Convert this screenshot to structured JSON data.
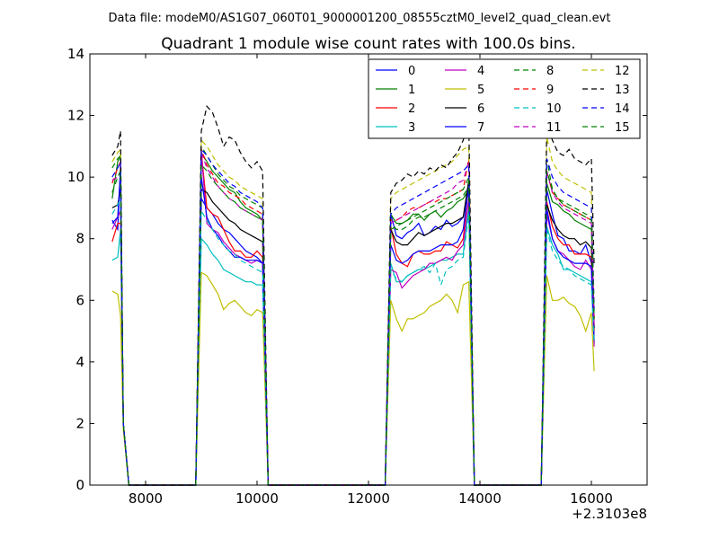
{
  "header": {
    "suptitle": "Data file: modeM0/AS1G07_060T01_9000001200_08555cztM0_level2_quad_clean.evt"
  },
  "chart_data": {
    "type": "line",
    "title": "Quadrant 1 module wise count rates with 100.0s bins.",
    "xlabel": "",
    "ylabel": "",
    "x_offset_label": "+2.3103e8",
    "xlim": [
      7000,
      17000
    ],
    "ylim": [
      0,
      14
    ],
    "xticks": [
      8000,
      10000,
      12000,
      14000,
      16000
    ],
    "yticks": [
      0,
      2,
      4,
      6,
      8,
      10,
      12,
      14
    ],
    "grid": false,
    "legend": {
      "position": "top-right",
      "columns": 4
    },
    "x": [
      7400,
      7500,
      7550,
      7600,
      7700,
      7800,
      8800,
      8900,
      9000,
      9100,
      9200,
      9300,
      9400,
      9500,
      9600,
      9700,
      9800,
      9900,
      10000,
      10100,
      10200,
      10300,
      12200,
      12300,
      12400,
      12500,
      12600,
      12700,
      12800,
      12900,
      13000,
      13100,
      13200,
      13300,
      13400,
      13500,
      13600,
      13700,
      13800,
      13900,
      14000,
      15000,
      15100,
      15200,
      15300,
      15400,
      15500,
      15600,
      15700,
      15800,
      15900,
      16000,
      16050
    ],
    "series": [
      {
        "name": "0",
        "color": "#0000ff",
        "dash": "solid",
        "values": [
          8.6,
          8.3,
          10.4,
          2.0,
          0,
          0,
          0,
          0,
          9.3,
          9.0,
          8.8,
          8.5,
          8.3,
          8.2,
          8.0,
          7.8,
          7.6,
          7.5,
          7.4,
          7.2,
          0,
          0,
          0,
          0,
          8.8,
          8.1,
          8.0,
          8.2,
          8.3,
          8.5,
          8.1,
          8.2,
          8.4,
          8.3,
          8.6,
          8.4,
          8.5,
          8.7,
          9.6,
          0,
          0,
          0,
          0,
          9.6,
          8.8,
          8.1,
          8.0,
          7.6,
          7.6,
          7.5,
          7.8,
          7.2,
          4.6
        ]
      },
      {
        "name": "1",
        "color": "#008000",
        "dash": "solid",
        "values": [
          9.3,
          10.5,
          10.7,
          2.0,
          0,
          0,
          0,
          0,
          10.8,
          10.5,
          10.2,
          10.0,
          9.8,
          9.6,
          9.5,
          9.2,
          9.0,
          8.9,
          8.8,
          8.6,
          0,
          0,
          0,
          0,
          8.8,
          8.5,
          8.5,
          8.6,
          8.8,
          8.8,
          8.6,
          8.8,
          8.9,
          8.7,
          8.9,
          9.0,
          9.2,
          9.3,
          9.6,
          0,
          0,
          0,
          0,
          9.8,
          9.2,
          9.1,
          8.9,
          8.8,
          8.6,
          8.5,
          8.4,
          8.3,
          5.4
        ]
      },
      {
        "name": "2",
        "color": "#ff0000",
        "dash": "solid",
        "values": [
          7.9,
          8.5,
          8.5,
          2.0,
          0,
          0,
          0,
          0,
          10.8,
          9.0,
          8.8,
          8.7,
          8.3,
          7.9,
          7.6,
          7.6,
          7.4,
          7.4,
          7.6,
          7.4,
          0,
          0,
          0,
          0,
          8.4,
          7.5,
          7.2,
          7.1,
          7.5,
          7.6,
          7.5,
          7.5,
          7.6,
          7.6,
          7.9,
          7.8,
          7.7,
          8.0,
          9.8,
          0,
          0,
          0,
          0,
          9.2,
          8.4,
          8.0,
          7.8,
          7.8,
          7.5,
          7.5,
          7.5,
          7.4,
          5.0
        ]
      },
      {
        "name": "3",
        "color": "#00bfbf",
        "dash": "solid",
        "values": [
          7.3,
          7.4,
          8.3,
          2.0,
          0,
          0,
          0,
          0,
          8.0,
          7.8,
          7.5,
          7.3,
          7.0,
          6.9,
          6.8,
          6.7,
          6.6,
          6.6,
          6.5,
          6.5,
          0,
          0,
          0,
          0,
          7.2,
          6.6,
          6.6,
          6.8,
          6.9,
          7.0,
          7.0,
          7.1,
          7.2,
          7.3,
          7.3,
          7.4,
          7.5,
          7.5,
          9.0,
          0,
          0,
          0,
          0,
          8.4,
          7.8,
          7.5,
          7.0,
          7.0,
          6.9,
          6.8,
          6.7,
          6.6,
          4.6
        ]
      },
      {
        "name": "4",
        "color": "#bf00bf",
        "dash": "solid",
        "values": [
          8.3,
          8.7,
          8.9,
          2.0,
          0,
          0,
          0,
          0,
          10.8,
          8.5,
          8.3,
          8.2,
          7.9,
          7.7,
          7.5,
          7.4,
          7.3,
          7.2,
          7.3,
          7.2,
          0,
          0,
          0,
          0,
          7.0,
          6.9,
          6.4,
          6.6,
          6.8,
          6.9,
          7.0,
          7.2,
          7.2,
          7.3,
          7.4,
          7.3,
          7.6,
          7.8,
          9.3,
          0,
          0,
          0,
          0,
          8.8,
          8.0,
          7.6,
          7.5,
          7.3,
          7.1,
          7.0,
          7.3,
          7.0,
          4.5
        ]
      },
      {
        "name": "5",
        "color": "#bfbf00",
        "dash": "solid",
        "values": [
          6.3,
          6.2,
          5.5,
          1.8,
          0,
          0,
          0,
          0,
          6.9,
          6.8,
          6.5,
          6.2,
          5.7,
          5.9,
          6.0,
          5.8,
          5.6,
          5.5,
          5.7,
          5.6,
          0,
          0,
          0,
          0,
          6.0,
          5.4,
          5.0,
          5.4,
          5.4,
          5.5,
          5.6,
          5.8,
          5.9,
          6.0,
          6.2,
          6.0,
          5.6,
          6.5,
          6.6,
          0,
          0,
          0,
          0,
          6.8,
          6.0,
          6.0,
          6.1,
          5.9,
          5.8,
          5.5,
          5.0,
          5.6,
          3.7
        ]
      },
      {
        "name": "6",
        "color": "#000000",
        "dash": "solid",
        "values": [
          9.0,
          9.1,
          9.6,
          2.0,
          0,
          0,
          0,
          0,
          9.6,
          9.5,
          9.2,
          9.0,
          8.8,
          8.6,
          8.5,
          8.3,
          8.2,
          8.1,
          8.0,
          7.9,
          0,
          0,
          0,
          0,
          8.3,
          7.9,
          7.8,
          7.8,
          8.0,
          8.2,
          8.1,
          8.2,
          8.3,
          8.4,
          8.5,
          8.5,
          8.6,
          8.7,
          9.9,
          0,
          0,
          0,
          0,
          9.1,
          8.6,
          8.3,
          8.1,
          8.0,
          8.0,
          7.8,
          7.9,
          7.7,
          5.1
        ]
      },
      {
        "name": "7",
        "color": "#0000ff",
        "dash": "solid",
        "values": [
          8.5,
          8.7,
          10.2,
          2.0,
          0,
          0,
          0,
          0,
          10.0,
          8.7,
          8.3,
          8.1,
          7.8,
          7.6,
          7.4,
          7.4,
          7.3,
          7.3,
          7.3,
          7.2,
          0,
          0,
          0,
          0,
          7.8,
          7.3,
          7.2,
          7.3,
          7.5,
          7.6,
          7.6,
          7.6,
          7.7,
          7.8,
          7.8,
          7.8,
          7.9,
          8.3,
          9.7,
          0,
          0,
          0,
          0,
          9.0,
          8.0,
          7.6,
          7.4,
          7.3,
          7.2,
          7.2,
          7.2,
          7.1,
          4.7
        ]
      },
      {
        "name": "8",
        "color": "#008000",
        "dash": "dashed",
        "values": [
          10.3,
          10.6,
          10.7,
          2.0,
          0,
          0,
          0,
          0,
          11.0,
          10.7,
          10.4,
          10.1,
          9.9,
          9.7,
          9.6,
          9.4,
          9.3,
          9.2,
          9.1,
          9.0,
          0,
          0,
          0,
          0,
          8.5,
          8.3,
          8.3,
          8.4,
          8.6,
          8.7,
          8.7,
          8.8,
          8.9,
          9.0,
          9.1,
          9.2,
          9.3,
          9.4,
          9.7,
          0,
          0,
          0,
          0,
          10.6,
          9.6,
          9.3,
          9.2,
          9.1,
          9.0,
          8.9,
          8.8,
          8.7,
          5.5
        ]
      },
      {
        "name": "9",
        "color": "#ff0000",
        "dash": "dashed",
        "values": [
          9.8,
          10.3,
          10.5,
          2.0,
          0,
          0,
          0,
          0,
          10.9,
          10.4,
          10.1,
          9.8,
          9.7,
          9.5,
          9.4,
          9.3,
          9.1,
          9.0,
          8.9,
          8.8,
          0,
          0,
          0,
          0,
          8.6,
          8.6,
          8.7,
          8.9,
          9.0,
          9.0,
          9.1,
          9.2,
          9.2,
          9.3,
          9.3,
          9.4,
          9.5,
          9.6,
          10.6,
          0,
          0,
          0,
          0,
          10.2,
          9.5,
          9.3,
          9.1,
          9.0,
          8.9,
          8.8,
          8.7,
          8.6,
          5.3
        ]
      },
      {
        "name": "10",
        "color": "#00bfbf",
        "dash": "dashed",
        "values": [
          8.8,
          9.1,
          9.3,
          2.0,
          0,
          0,
          0,
          0,
          8.9,
          8.6,
          8.3,
          8.0,
          7.8,
          7.6,
          7.5,
          7.3,
          7.2,
          7.1,
          7.0,
          6.9,
          0,
          0,
          0,
          0,
          7.0,
          6.7,
          6.6,
          6.8,
          6.9,
          7.0,
          7.1,
          6.9,
          7.2,
          6.5,
          7.0,
          7.1,
          7.3,
          7.4,
          8.8,
          0,
          0,
          0,
          0,
          8.3,
          7.6,
          7.3,
          7.1,
          7.0,
          6.8,
          6.7,
          6.6,
          6.5,
          4.6
        ]
      },
      {
        "name": "11",
        "color": "#bf00bf",
        "dash": "dashed",
        "values": [
          9.9,
          10.0,
          10.2,
          2.0,
          0,
          0,
          0,
          0,
          10.8,
          10.3,
          10.0,
          9.7,
          9.5,
          9.3,
          9.2,
          9.0,
          8.9,
          8.8,
          8.7,
          8.6,
          0,
          0,
          0,
          0,
          8.5,
          8.6,
          8.7,
          8.8,
          8.9,
          9.0,
          9.1,
          9.2,
          9.3,
          9.4,
          9.5,
          9.6,
          9.8,
          9.9,
          10.5,
          0,
          0,
          0,
          0,
          10.2,
          9.5,
          9.2,
          9.0,
          8.9,
          8.8,
          8.7,
          8.6,
          8.5,
          5.2
        ]
      },
      {
        "name": "12",
        "color": "#bfbf00",
        "dash": "dashed",
        "values": [
          10.5,
          10.8,
          10.9,
          2.0,
          0,
          0,
          0,
          0,
          11.2,
          11.0,
          10.7,
          10.4,
          10.2,
          10.0,
          9.9,
          9.7,
          9.6,
          9.5,
          9.4,
          9.3,
          0,
          0,
          0,
          0,
          9.3,
          9.5,
          9.6,
          9.7,
          9.8,
          9.9,
          10.0,
          10.1,
          10.2,
          10.3,
          10.4,
          10.5,
          10.7,
          10.9,
          11.0,
          0,
          0,
          0,
          0,
          11.3,
          10.5,
          10.2,
          10.0,
          9.9,
          9.8,
          9.7,
          9.6,
          9.5,
          5.8
        ]
      },
      {
        "name": "13",
        "color": "#000000",
        "dash": "dashed",
        "values": [
          10.7,
          11.0,
          11.5,
          2.0,
          0,
          0,
          0,
          0,
          11.5,
          12.3,
          12.1,
          11.6,
          11.0,
          11.3,
          11.2,
          10.8,
          10.5,
          10.3,
          10.5,
          10.2,
          0,
          0,
          0,
          0,
          9.5,
          9.8,
          9.9,
          10.1,
          10.0,
          10.2,
          10.1,
          10.3,
          10.2,
          10.4,
          10.3,
          10.6,
          10.8,
          11.2,
          11.8,
          0,
          0,
          0,
          0,
          11.7,
          11.2,
          10.8,
          10.7,
          10.9,
          10.6,
          10.5,
          10.4,
          10.6,
          7.1
        ]
      },
      {
        "name": "14",
        "color": "#0000ff",
        "dash": "dashed",
        "values": [
          10.0,
          10.3,
          10.5,
          2.0,
          0,
          0,
          0,
          0,
          10.9,
          10.7,
          10.4,
          10.2,
          10.0,
          9.8,
          9.7,
          9.5,
          9.4,
          9.3,
          9.2,
          9.0,
          0,
          0,
          0,
          0,
          8.8,
          9.0,
          9.1,
          9.2,
          9.3,
          9.4,
          9.5,
          9.6,
          9.7,
          9.8,
          9.9,
          10.0,
          10.1,
          10.2,
          10.4,
          0,
          0,
          0,
          0,
          10.6,
          10.0,
          9.7,
          9.5,
          9.4,
          9.3,
          9.2,
          9.1,
          9.0,
          5.7
        ]
      },
      {
        "name": "15",
        "color": "#008000",
        "dash": "dashed",
        "values": [
          9.5,
          10.0,
          10.2,
          2.0,
          0,
          0,
          0,
          0,
          10.4,
          10.2,
          9.9,
          9.7,
          9.5,
          9.3,
          9.2,
          9.0,
          8.9,
          8.8,
          8.7,
          8.6,
          0,
          0,
          0,
          0,
          8.3,
          8.4,
          8.5,
          8.6,
          8.7,
          8.8,
          8.9,
          9.0,
          9.1,
          9.2,
          9.3,
          9.4,
          9.5,
          9.6,
          10.0,
          0,
          0,
          0,
          0,
          10.2,
          9.6,
          9.3,
          9.1,
          9.0,
          8.9,
          8.8,
          8.7,
          8.6,
          5.4
        ]
      }
    ]
  }
}
